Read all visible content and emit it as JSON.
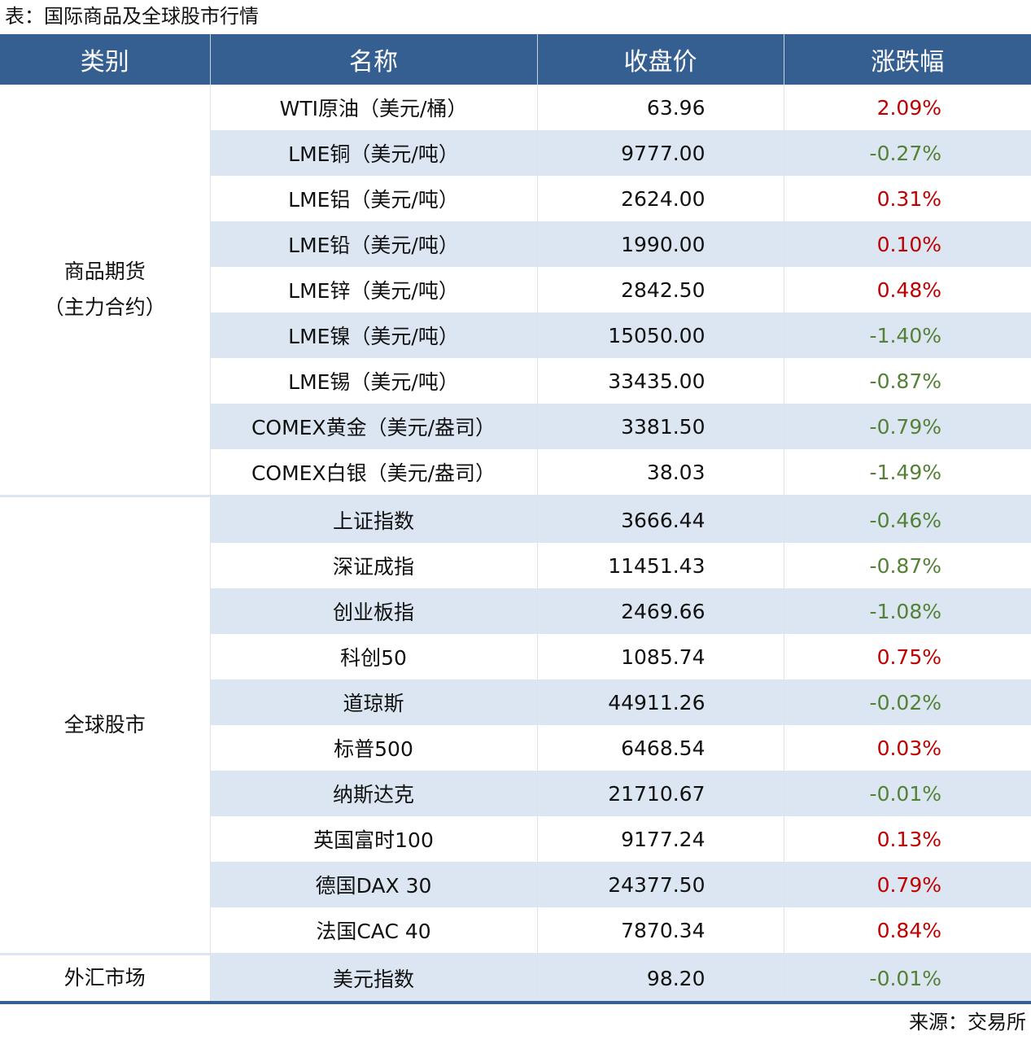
{
  "title": "表：国际商品及全球股市行情",
  "source": "来源：交易所",
  "colors": {
    "header_bg": "#355f91",
    "shade": "#dce6f2",
    "up": "#c00000",
    "down": "#538135"
  },
  "headers": [
    "类别",
    "名称",
    "收盘价",
    "涨跌幅"
  ],
  "groups": [
    {
      "category": "商品期货\n（主力合约）",
      "rows": [
        {
          "name": "WTI原油（美元/桶）",
          "close": "63.96",
          "change": "2.09%"
        },
        {
          "name": "LME铜（美元/吨）",
          "close": "9777.00",
          "change": "-0.27%"
        },
        {
          "name": "LME铝（美元/吨）",
          "close": "2624.00",
          "change": "0.31%"
        },
        {
          "name": "LME铅（美元/吨）",
          "close": "1990.00",
          "change": "0.10%"
        },
        {
          "name": "LME锌（美元/吨）",
          "close": "2842.50",
          "change": "0.48%"
        },
        {
          "name": "LME镍（美元/吨）",
          "close": "15050.00",
          "change": "-1.40%"
        },
        {
          "name": "LME锡（美元/吨）",
          "close": "33435.00",
          "change": "-0.87%"
        },
        {
          "name": "COMEX黄金（美元/盎司）",
          "close": "3381.50",
          "change": "-0.79%"
        },
        {
          "name": "COMEX白银（美元/盎司）",
          "close": "38.03",
          "change": "-1.49%"
        }
      ]
    },
    {
      "category": "全球股市",
      "rows": [
        {
          "name": "上证指数",
          "close": "3666.44",
          "change": "-0.46%"
        },
        {
          "name": "深证成指",
          "close": "11451.43",
          "change": "-0.87%"
        },
        {
          "name": "创业板指",
          "close": "2469.66",
          "change": "-1.08%"
        },
        {
          "name": "科创50",
          "close": "1085.74",
          "change": "0.75%"
        },
        {
          "name": "道琼斯",
          "close": "44911.26",
          "change": "-0.02%"
        },
        {
          "name": "标普500",
          "close": "6468.54",
          "change": "0.03%"
        },
        {
          "name": "纳斯达克",
          "close": "21710.67",
          "change": "-0.01%"
        },
        {
          "name": "英国富时100",
          "close": "9177.24",
          "change": "0.13%"
        },
        {
          "name": "德国DAX 30",
          "close": "24377.50",
          "change": "0.79%"
        },
        {
          "name": "法国CAC 40",
          "close": "7870.34",
          "change": "0.84%"
        }
      ]
    },
    {
      "category": "外汇市场",
      "rows": [
        {
          "name": "美元指数",
          "close": "98.20",
          "change": "-0.01%"
        }
      ]
    }
  ]
}
